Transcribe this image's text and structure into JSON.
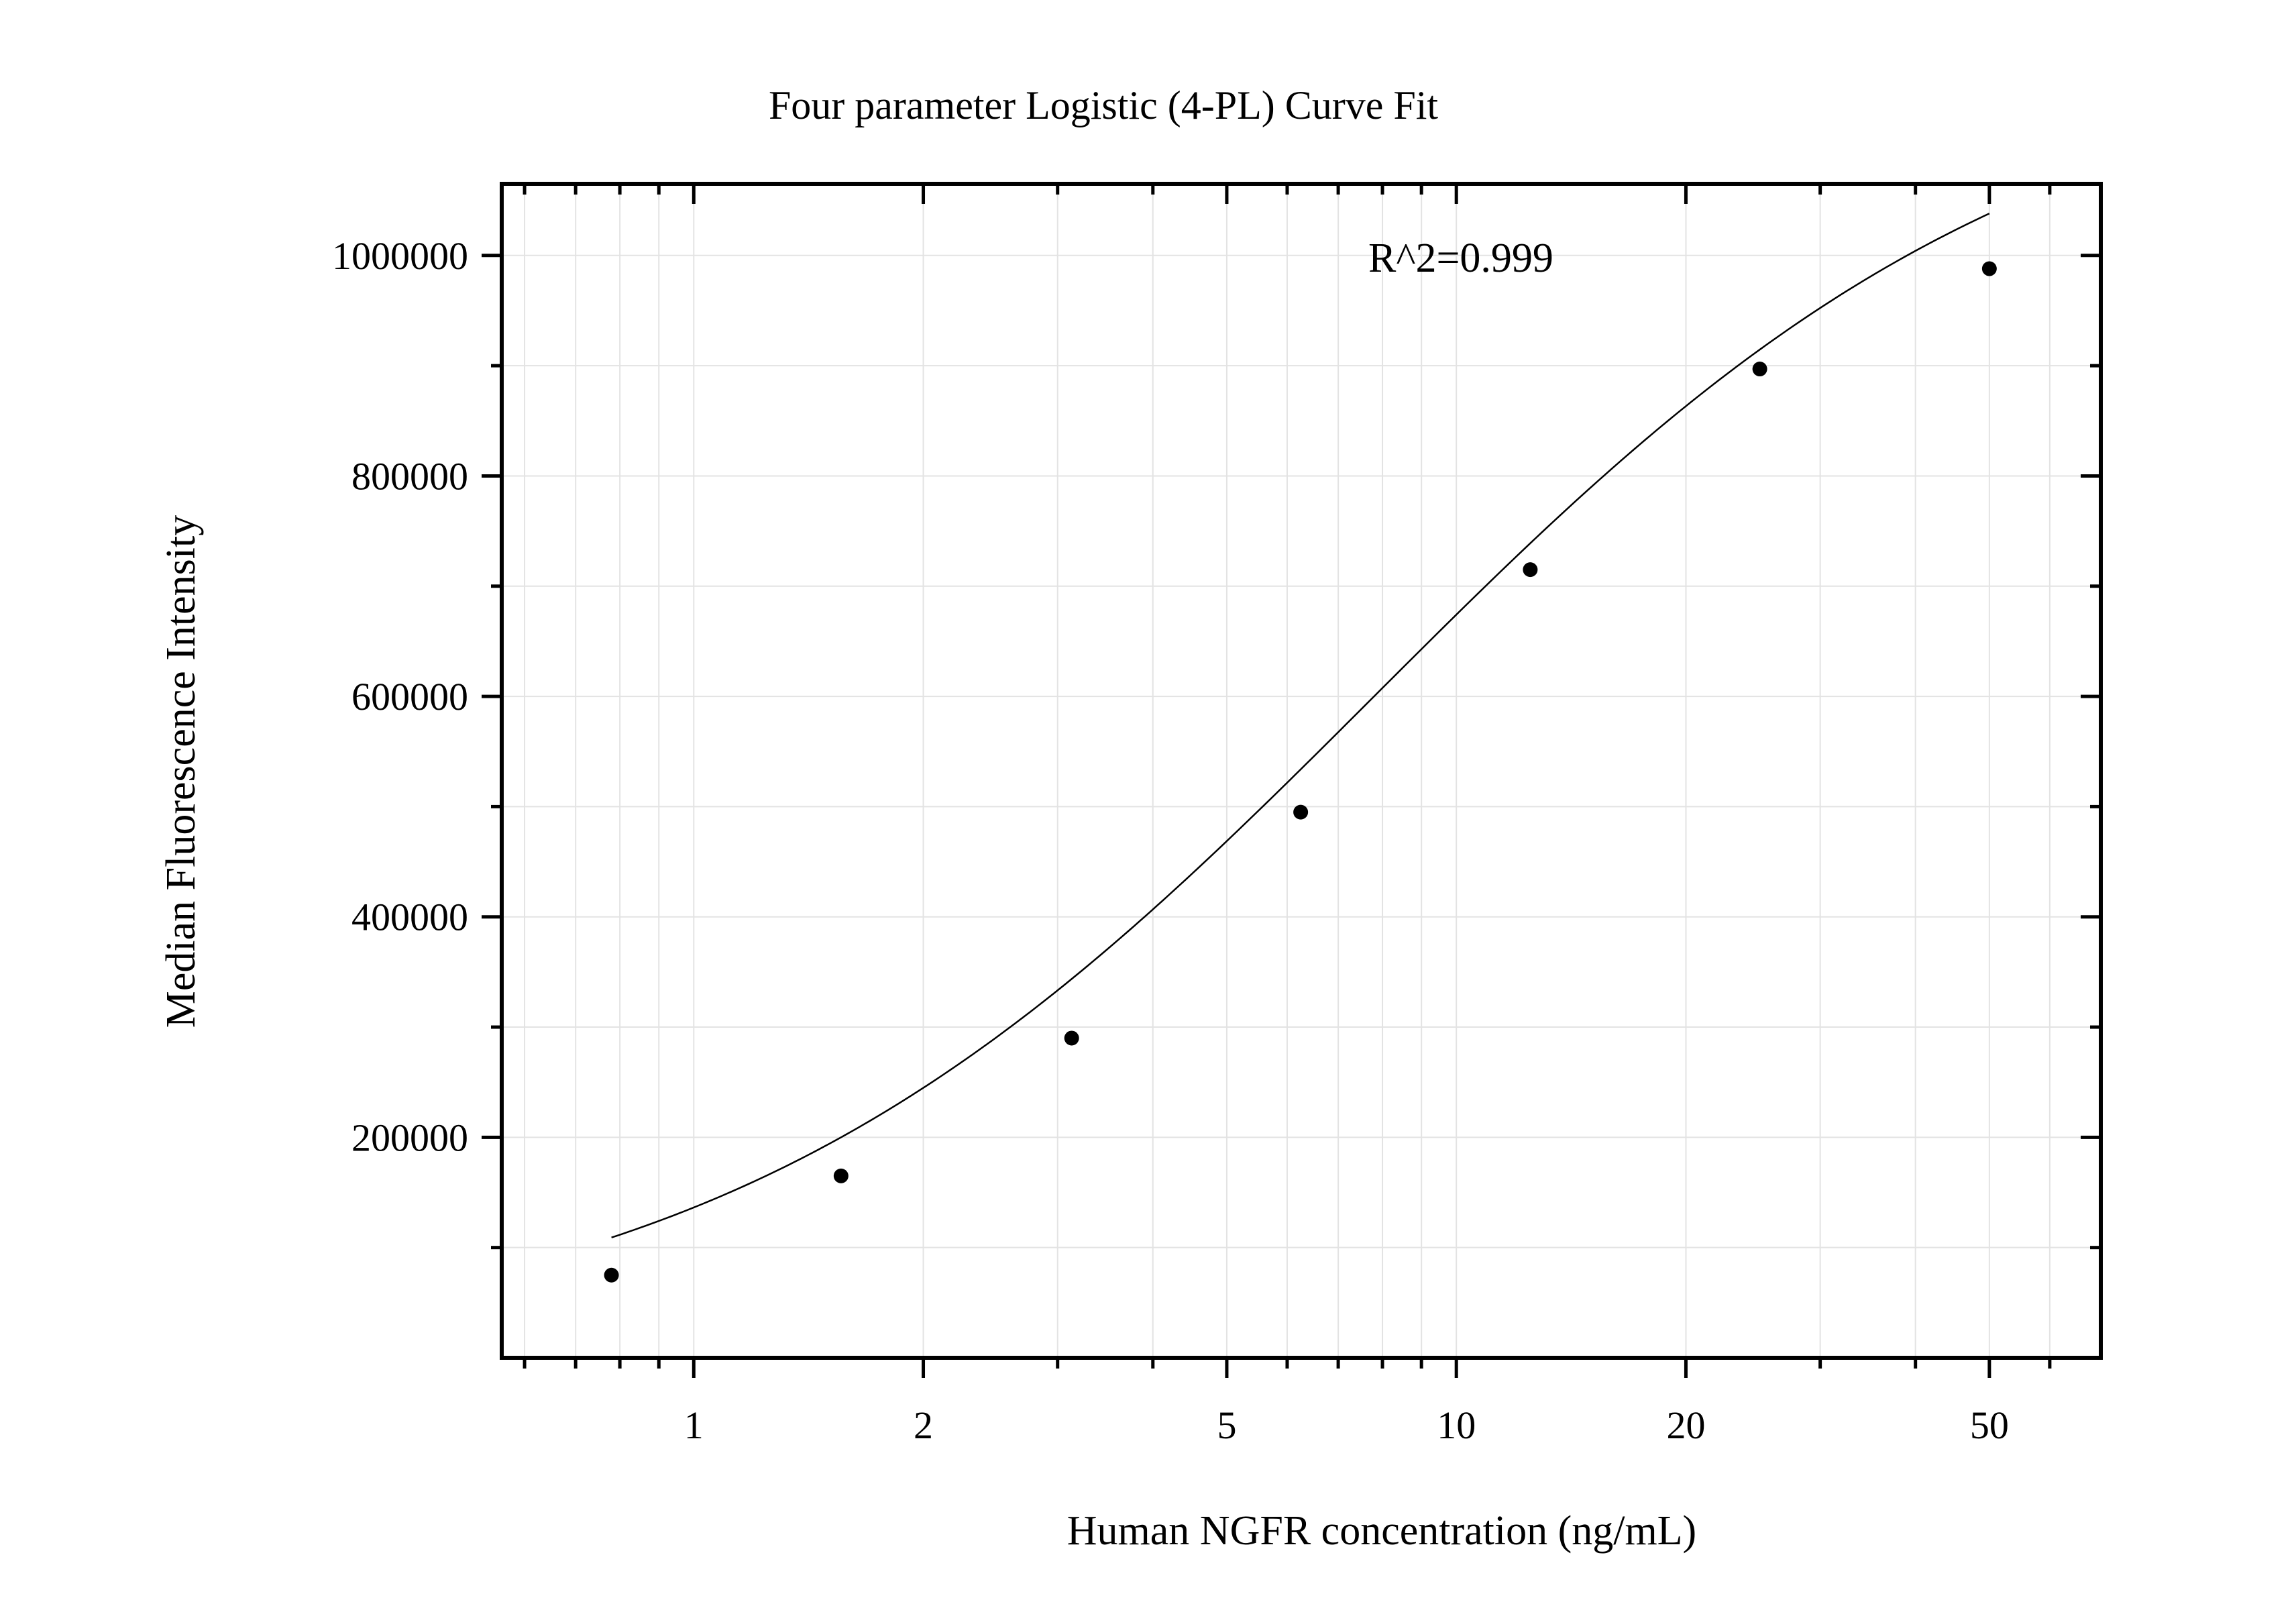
{
  "chart_data": {
    "type": "scatter",
    "title": "Four parameter Logistic (4-PL) Curve Fit",
    "xlabel": "Human NGFR concentration (ng/mL)",
    "ylabel": "Median Fluorescence Intensity",
    "x_scale": "log",
    "xlim": [
      0.56,
      70
    ],
    "ylim": [
      0,
      1065000
    ],
    "x_ticks": [
      1,
      2,
      5,
      10,
      20,
      50
    ],
    "x_tick_labels": [
      "1",
      "2",
      "5",
      "10",
      "20",
      "50"
    ],
    "y_ticks": [
      200000,
      400000,
      600000,
      800000,
      1000000
    ],
    "y_tick_labels": [
      "200000",
      "400000",
      "600000",
      "800000",
      "1000000"
    ],
    "grid": true,
    "annotation": "R^2=0.999",
    "points": {
      "x": [
        0.78,
        1.56,
        3.13,
        6.25,
        12.5,
        25,
        50
      ],
      "y": [
        75000,
        165000,
        290000,
        495000,
        715000,
        897000,
        988000
      ]
    },
    "fit": {
      "model": "4-PL",
      "bottom": 0,
      "top": 1200000,
      "ec50": 7.8,
      "hill": 1.0
    },
    "colors": {
      "points": "#000000",
      "curve": "#000000",
      "grid": "#e3e3e3",
      "frame": "#000000"
    }
  }
}
